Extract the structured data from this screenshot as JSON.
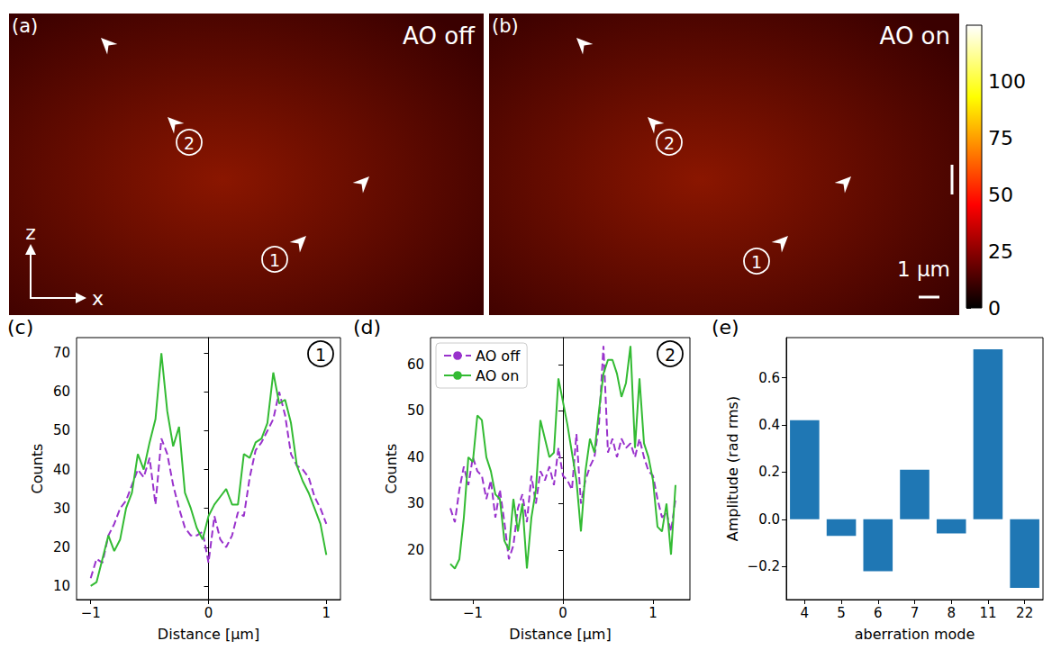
{
  "images": [
    {
      "label": "(a)",
      "title": "AO off",
      "markers": [
        "1",
        "2"
      ],
      "axes": [
        "z",
        "x"
      ]
    },
    {
      "label": "(b)",
      "title": "AO on",
      "markers": [
        "1",
        "2"
      ],
      "scale_bar": "1 µm"
    }
  ],
  "colorbar": {
    "range": [
      0,
      125
    ],
    "ticks": [
      0,
      25,
      50,
      75,
      100
    ]
  },
  "chart_data": [
    {
      "label": "(c)",
      "marker_label": "1",
      "type": "line",
      "xlabel": "Distance [µm]",
      "ylabel": "Counts",
      "xlim": [
        -1.12,
        1.12
      ],
      "xticks": [
        {
          "value": -1,
          "label": "−1"
        },
        0,
        1
      ],
      "ylim": [
        6.5,
        74
      ],
      "yticks": [
        10,
        20,
        30,
        40,
        50,
        60,
        70
      ],
      "x": [
        -1,
        -0.95,
        -0.9,
        -0.85,
        -0.8,
        -0.75,
        -0.7,
        -0.65,
        -0.6,
        -0.55,
        -0.5,
        -0.45,
        -0.4,
        -0.35,
        -0.3,
        -0.25,
        -0.2,
        -0.15,
        -0.1,
        -0.05,
        0,
        0.05,
        0.1,
        0.15,
        0.2,
        0.25,
        0.3,
        0.35,
        0.4,
        0.45,
        0.5,
        0.55,
        0.6,
        0.65,
        0.7,
        0.75,
        0.8,
        0.85,
        0.9,
        0.95,
        1
      ],
      "series": [
        {
          "color": "#9932cc",
          "line_style": "dashed",
          "values": [
            12,
            17,
            16,
            23,
            26,
            30,
            32,
            36,
            40,
            38,
            43,
            31,
            48,
            44,
            36,
            30,
            25,
            23,
            23,
            24,
            16,
            28,
            22,
            20,
            23,
            29,
            28,
            38,
            45,
            47,
            50,
            53,
            60,
            54,
            44,
            41,
            40,
            38,
            33,
            30,
            26
          ]
        },
        {
          "color": "#33bb33",
          "line_style": "solid",
          "values": [
            10,
            11,
            17,
            23,
            19,
            22,
            30,
            34,
            44,
            40,
            47,
            53,
            70,
            55,
            46,
            51,
            34,
            30,
            25,
            22,
            28,
            31,
            33,
            35,
            31,
            31,
            44,
            43,
            47,
            48,
            52,
            65,
            57,
            58,
            52,
            41,
            37,
            34,
            30,
            26,
            18
          ]
        }
      ]
    },
    {
      "label": "(d)",
      "marker_label": "2",
      "type": "line",
      "legend": "upper left",
      "xlabel": "Distance [µm]",
      "ylabel": "Counts",
      "xlim": [
        -1.47,
        1.41
      ],
      "xticks": [
        {
          "value": -1,
          "label": "−1"
        },
        0,
        1
      ],
      "ylim": [
        9.3,
        65.8
      ],
      "yticks": [
        20,
        30,
        40,
        50,
        60
      ],
      "x": [
        -1.25,
        -1.2,
        -1.15,
        -1.1,
        -1.05,
        -1,
        -0.95,
        -0.9,
        -0.85,
        -0.8,
        -0.75,
        -0.7,
        -0.65,
        -0.6,
        -0.55,
        -0.5,
        -0.45,
        -0.4,
        -0.35,
        -0.3,
        -0.25,
        -0.2,
        -0.15,
        -0.1,
        -0.05,
        0,
        0.05,
        0.1,
        0.15,
        0.2,
        0.25,
        0.3,
        0.35,
        0.4,
        0.45,
        0.5,
        0.55,
        0.6,
        0.65,
        0.7,
        0.75,
        0.8,
        0.85,
        0.9,
        0.95,
        1,
        1.05,
        1.1,
        1.15,
        1.2,
        1.25
      ],
      "series": [
        {
          "name": "AO off",
          "color": "#9932cc",
          "line_style": "dashed",
          "values": [
            29,
            26,
            33,
            38,
            34,
            40,
            37,
            36,
            31,
            35,
            27,
            33,
            26,
            18,
            21,
            29,
            32,
            26,
            36,
            30,
            37,
            35,
            38,
            34,
            42,
            36,
            35,
            33,
            45,
            30,
            35,
            38,
            40,
            47,
            64,
            41,
            44,
            40,
            44,
            42,
            43,
            40,
            44,
            40,
            37,
            36,
            31,
            27,
            28,
            24,
            31
          ]
        },
        {
          "name": "AO on",
          "color": "#33bb33",
          "line_style": "solid",
          "values": [
            17,
            16,
            18,
            27,
            40,
            39,
            49,
            48,
            40,
            37,
            32,
            31,
            22,
            20,
            31,
            24,
            30,
            16,
            27,
            33,
            48,
            44,
            40,
            41,
            57,
            52,
            47,
            41,
            35,
            24,
            37,
            44,
            41,
            50,
            58,
            61,
            61,
            58,
            53,
            56,
            64,
            42,
            57,
            43,
            40,
            35,
            25,
            24,
            30,
            19,
            34
          ]
        }
      ]
    },
    {
      "label": "(e)",
      "type": "bar",
      "color": "#1f77b4",
      "xlabel": "aberration mode",
      "ylabel": "Amplitude (rad rms)",
      "categories": [
        "4",
        "5",
        "6",
        "7",
        "8",
        "11",
        "22"
      ],
      "values": [
        0.42,
        -0.07,
        -0.22,
        0.21,
        -0.06,
        0.72,
        -0.29
      ],
      "ylim": [
        -0.34,
        0.77
      ],
      "yticks": [
        {
          "value": -0.2,
          "label": "−0.2"
        },
        {
          "value": 0,
          "label": "0.0"
        },
        0.2,
        0.4,
        0.6
      ]
    }
  ]
}
